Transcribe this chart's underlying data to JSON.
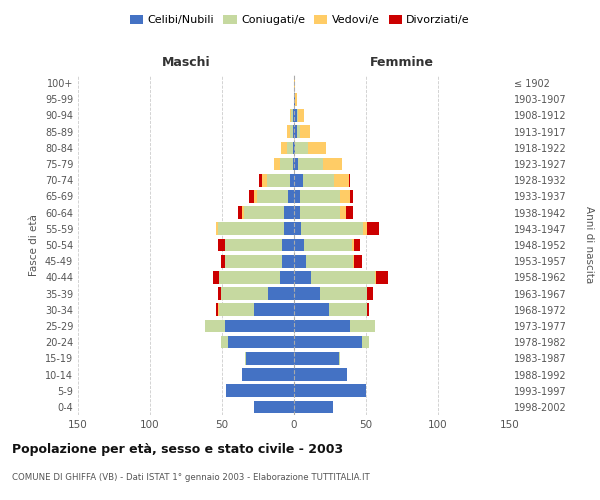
{
  "age_groups": [
    "0-4",
    "5-9",
    "10-14",
    "15-19",
    "20-24",
    "25-29",
    "30-34",
    "35-39",
    "40-44",
    "45-49",
    "50-54",
    "55-59",
    "60-64",
    "65-69",
    "70-74",
    "75-79",
    "80-84",
    "85-89",
    "90-94",
    "95-99",
    "100+"
  ],
  "birth_years": [
    "1998-2002",
    "1993-1997",
    "1988-1992",
    "1983-1987",
    "1978-1982",
    "1973-1977",
    "1968-1972",
    "1963-1967",
    "1958-1962",
    "1953-1957",
    "1948-1952",
    "1943-1947",
    "1938-1942",
    "1933-1937",
    "1928-1932",
    "1923-1927",
    "1918-1922",
    "1913-1917",
    "1908-1912",
    "1903-1907",
    "≤ 1902"
  ],
  "male_celibe": [
    28,
    47,
    36,
    33,
    46,
    48,
    28,
    18,
    10,
    8,
    8,
    7,
    7,
    4,
    3,
    1,
    1,
    1,
    1,
    0,
    0
  ],
  "male_coniugato": [
    0,
    0,
    0,
    1,
    5,
    14,
    24,
    33,
    42,
    40,
    40,
    46,
    28,
    22,
    16,
    9,
    4,
    2,
    1,
    0,
    0
  ],
  "male_vedovo": [
    0,
    0,
    0,
    0,
    0,
    0,
    1,
    0,
    0,
    0,
    0,
    1,
    1,
    2,
    3,
    4,
    4,
    2,
    1,
    0,
    0
  ],
  "male_divorziato": [
    0,
    0,
    0,
    0,
    0,
    0,
    1,
    2,
    4,
    3,
    5,
    0,
    3,
    3,
    2,
    0,
    0,
    0,
    0,
    0,
    0
  ],
  "female_celibe": [
    27,
    50,
    37,
    31,
    47,
    39,
    24,
    18,
    12,
    8,
    7,
    5,
    4,
    4,
    6,
    3,
    1,
    2,
    2,
    1,
    0
  ],
  "female_coniugato": [
    0,
    0,
    0,
    1,
    5,
    17,
    27,
    33,
    44,
    33,
    33,
    43,
    28,
    28,
    22,
    17,
    9,
    2,
    1,
    0,
    0
  ],
  "female_vedovo": [
    0,
    0,
    0,
    0,
    0,
    0,
    0,
    0,
    1,
    1,
    2,
    3,
    4,
    7,
    10,
    13,
    12,
    7,
    4,
    1,
    1
  ],
  "female_divorziato": [
    0,
    0,
    0,
    0,
    0,
    0,
    1,
    4,
    8,
    5,
    4,
    8,
    5,
    2,
    1,
    0,
    0,
    0,
    0,
    0,
    0
  ],
  "color_celibe": "#4472C4",
  "color_coniugato": "#C6D9A0",
  "color_vedovo": "#FFCC66",
  "color_divorziato": "#CC0000",
  "xlim": 150,
  "title": "Popolazione per età, sesso e stato civile - 2003",
  "subtitle": "COMUNE DI GHIFFA (VB) - Dati ISTAT 1° gennaio 2003 - Elaborazione TUTTITALIA.IT",
  "ylabel_left": "Fasce di età",
  "ylabel_right": "Anni di nascita",
  "xlabel_left": "Maschi",
  "xlabel_right": "Femmine"
}
